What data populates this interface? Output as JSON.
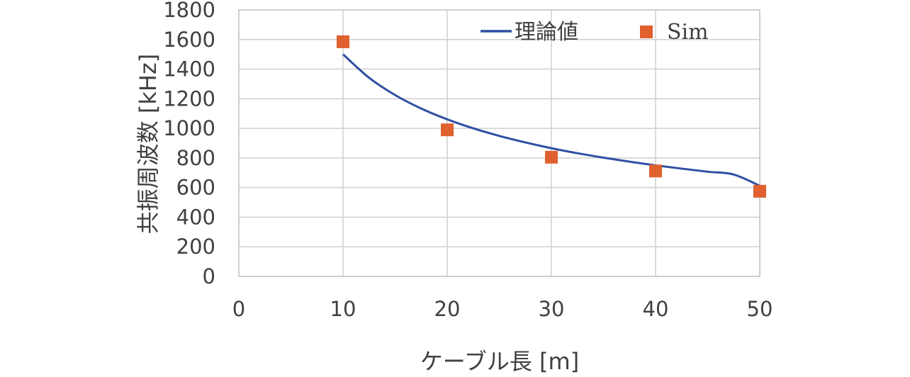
{
  "chart_data": {
    "type": "line",
    "xlabel": "ケーブル長 [m]",
    "ylabel": "共振周波数 [kHz]",
    "xlim": [
      0,
      50
    ],
    "ylim": [
      0,
      1800
    ],
    "x_ticks": [
      0,
      10,
      20,
      30,
      40,
      50
    ],
    "y_ticks": [
      0,
      200,
      400,
      600,
      800,
      1000,
      1200,
      1400,
      1600,
      1800
    ],
    "x_tick_labels": [
      "0",
      "10",
      "20",
      "30",
      "40",
      "50"
    ],
    "y_tick_labels": [
      "0",
      "200",
      "400",
      "600",
      "800",
      "1000",
      "1200",
      "1400",
      "1600",
      "1800"
    ],
    "grid": true,
    "legend_position": "top-right",
    "series": [
      {
        "name": "理論値",
        "kind": "line",
        "color": "#2F4FA2",
        "x": [
          10,
          12.5,
          15,
          17.5,
          20,
          22.5,
          25,
          27.5,
          30,
          32.5,
          35,
          37.5,
          40,
          42.5,
          45,
          47.5,
          50
        ],
        "y": [
          1500,
          1342,
          1225,
          1134,
          1061,
          1000,
          949,
          905,
          866,
          832,
          802,
          775,
          750,
          728,
          707,
          688,
          612
        ]
      },
      {
        "name": "Sim",
        "kind": "scatter",
        "marker": "square",
        "color": "#E0612E",
        "x": [
          10,
          20,
          30,
          40,
          50
        ],
        "y": [
          1585,
          990,
          805,
          712,
          575
        ]
      }
    ]
  }
}
